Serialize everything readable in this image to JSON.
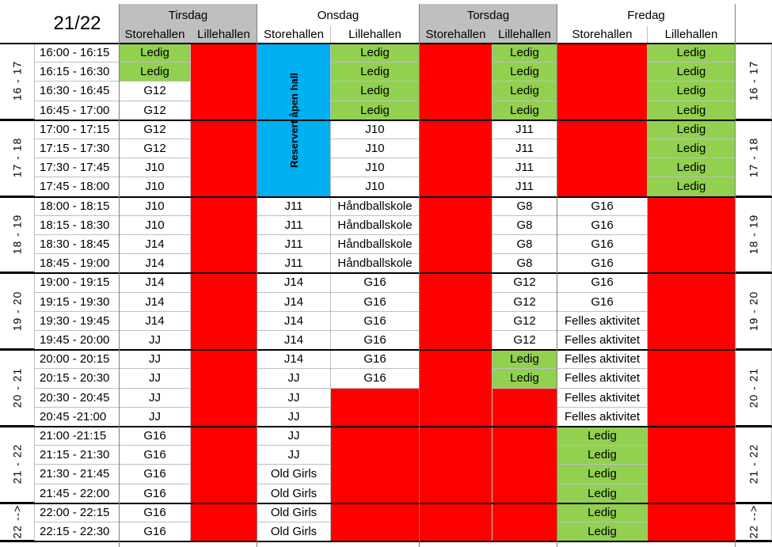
{
  "season": "21/22",
  "days": [
    "Tirsdag",
    "Onsdag",
    "Torsdag",
    "Fredag"
  ],
  "halls": [
    "Storehallen",
    "Lillehallen"
  ],
  "hour_labels": [
    "16 - 17",
    "17 - 18",
    "18 - 19",
    "19 - 20",
    "20 - 21",
    "21 - 22",
    "22 -->"
  ],
  "times": [
    "16:00 - 16:15",
    "16:15 - 16:30",
    "16:30 - 16:45",
    "16:45 - 17:00",
    "17:00 - 17:15",
    "17:15 - 17:30",
    "17:30 - 17:45",
    "17:45 - 18:00",
    "18:00 - 18:15",
    "18:15 - 18:30",
    "18:30 - 18:45",
    "18:45 - 19:00",
    "19:00 - 19:15",
    "19:15 - 19:30",
    "19:30 - 19:45",
    "19:45 - 20:00",
    "20:00 - 20:15",
    "20:15 - 20:30",
    "20:30 - 20:45",
    "20:45 -21:00",
    "21:00 -21:15",
    "21:15 - 21:30",
    "21:30 - 21:45",
    "21:45 - 22:00",
    "22:00 - 22:15",
    "22:15 - 22:30"
  ],
  "columns": [
    [
      "Ledig|g",
      "Ledig|g",
      "G12",
      "G12",
      "G12",
      "G12",
      "J10",
      "J10",
      "J10",
      "J10",
      "J14",
      "J14",
      "J14",
      "J14",
      "J14",
      "JJ",
      "JJ",
      "JJ",
      "JJ",
      "JJ",
      "G16",
      "G16",
      "G16",
      "G16",
      "G16",
      "G16"
    ],
    [
      "|r",
      "|r",
      "|r",
      "|r",
      "|r",
      "|r",
      "|r",
      "|r",
      "|r",
      "|r",
      "|r",
      "|r",
      "|r",
      "|r",
      "|r",
      "|r",
      "|r",
      "|r",
      "|r",
      "|r",
      "|r",
      "|r",
      "|r",
      "|r",
      "|r",
      "|r"
    ],
    [
      "|b",
      "|b",
      "|b",
      "|b",
      "|b",
      "|b",
      "|b",
      "|b",
      "J11",
      "J11",
      "J11",
      "J11",
      "J14",
      "J14",
      "J14",
      "J14",
      "J14",
      "JJ",
      "JJ",
      "JJ",
      "JJ",
      "JJ",
      "Old Girls",
      "Old Girls",
      "Old Girls",
      "Old Girls"
    ],
    [
      "Ledig|g",
      "Ledig|g",
      "Ledig|g",
      "Ledig|g",
      "J10",
      "J10",
      "J10",
      "J10",
      "Håndballskole",
      "Håndballskole",
      "Håndballskole",
      "Håndballskole",
      "G16",
      "G16",
      "G16",
      "G16",
      "G16",
      "G16",
      "|r",
      "|r",
      "|r",
      "|r",
      "|r",
      "|r",
      "|r",
      "|r"
    ],
    [
      "|r",
      "|r",
      "|r",
      "|r",
      "|r",
      "|r",
      "|r",
      "|r",
      "|r",
      "|r",
      "|r",
      "|r",
      "|r",
      "|r",
      "|r",
      "|r",
      "|r",
      "|r",
      "|r",
      "|r",
      "|r",
      "|r",
      "|r",
      "|r",
      "|r",
      "|r"
    ],
    [
      "Ledig|g",
      "Ledig|g",
      "Ledig|g",
      "Ledig|g",
      "J11",
      "J11",
      "J11",
      "J11",
      "G8",
      "G8",
      "G8",
      "G8",
      "G12",
      "G12",
      "G12",
      "G12",
      "Ledig|g",
      "Ledig|g",
      "|r",
      "|r",
      "|r",
      "|r",
      "|r",
      "|r",
      "|r",
      "|r"
    ],
    [
      "|r",
      "|r",
      "|r",
      "|r",
      "|r",
      "|r",
      "|r",
      "|r",
      "G16",
      "G16",
      "G16",
      "G16",
      "G16",
      "G16",
      "Felles aktivitet",
      "Felles aktivitet",
      "Felles aktivitet",
      "Felles aktivitet",
      "Felles aktivitet",
      "Felles aktivitet",
      "Ledig|g",
      "Ledig|g",
      "Ledig|g",
      "Ledig|g",
      "Ledig|g",
      "Ledig|g"
    ],
    [
      "Ledig|g",
      "Ledig|g",
      "Ledig|g",
      "Ledig|g",
      "Ledig|g",
      "Ledig|g",
      "Ledig|g",
      "Ledig|g",
      "|r",
      "|r",
      "|r",
      "|r",
      "|r",
      "|r",
      "|r",
      "|r",
      "|r",
      "|r",
      "|r",
      "|r",
      "|r",
      "|r",
      "|r",
      "|r",
      "|r",
      "|r"
    ]
  ],
  "reserved_label": "Reservert åpen hall"
}
